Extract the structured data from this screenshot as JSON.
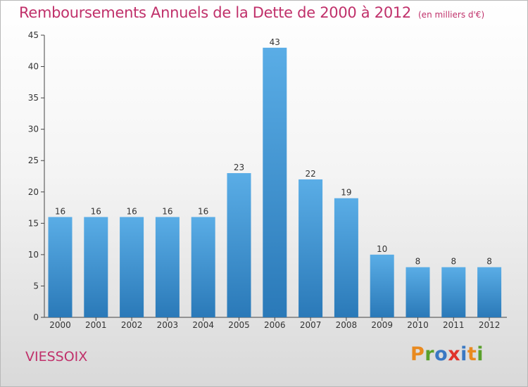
{
  "header": {
    "title": "Remboursements Annuels de la Dette de 2000 à 2012",
    "unit": "(en milliers d'€)"
  },
  "commune": "VIESSOIX",
  "logo": {
    "text": "Proxiti",
    "letter_colors": [
      "#e98a1f",
      "#5aa02c",
      "#3a78c3",
      "#e0342c",
      "#3a78c3",
      "#e98a1f",
      "#5aa02c"
    ]
  },
  "chart_data": {
    "type": "bar",
    "title": "Remboursements Annuels de la Dette de 2000 à 2012",
    "categories": [
      "2000",
      "2001",
      "2002",
      "2003",
      "2004",
      "2005",
      "2006",
      "2007",
      "2008",
      "2009",
      "2010",
      "2011",
      "2012"
    ],
    "values": [
      16,
      16,
      16,
      16,
      16,
      23,
      43,
      22,
      19,
      10,
      8,
      8,
      8
    ],
    "data_labels": [
      "16",
      "16",
      "16",
      "16",
      "16",
      "23",
      "43",
      "22",
      "19",
      "10",
      "8",
      "8",
      "8"
    ],
    "ylim": [
      0,
      45
    ],
    "yticks": [
      0,
      5,
      10,
      15,
      20,
      25,
      30,
      35,
      40,
      45
    ],
    "grid": false,
    "bar_color_top": "#5aade6",
    "bar_color_bottom": "#2a79b8"
  }
}
